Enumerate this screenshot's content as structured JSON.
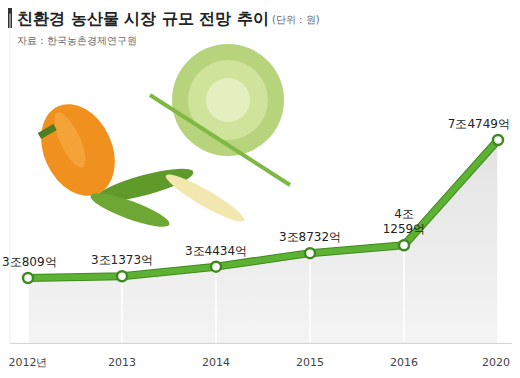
{
  "chart_data": {
    "type": "line",
    "title": "친환경 농산물 시장 규모 전망 추이",
    "subtitle": "(단위 : 원)",
    "source": "자료 : 한국농촌경제연구원",
    "categories": [
      "2012년",
      "2013",
      "2014",
      "2015",
      "2016",
      "2020"
    ],
    "values": [
      30809,
      31373,
      34434,
      38732,
      41259,
      74749
    ],
    "value_labels": [
      "3조809억",
      "3조1373억",
      "3조4434억",
      "3조8732억",
      "4조 1259억",
      "7조4749억"
    ],
    "color": "#5db133",
    "ylim": [
      10000,
      115000
    ],
    "yticks": [],
    "tick_labels": "x",
    "data_labels": true,
    "marker": "circle",
    "grid": false
  }
}
